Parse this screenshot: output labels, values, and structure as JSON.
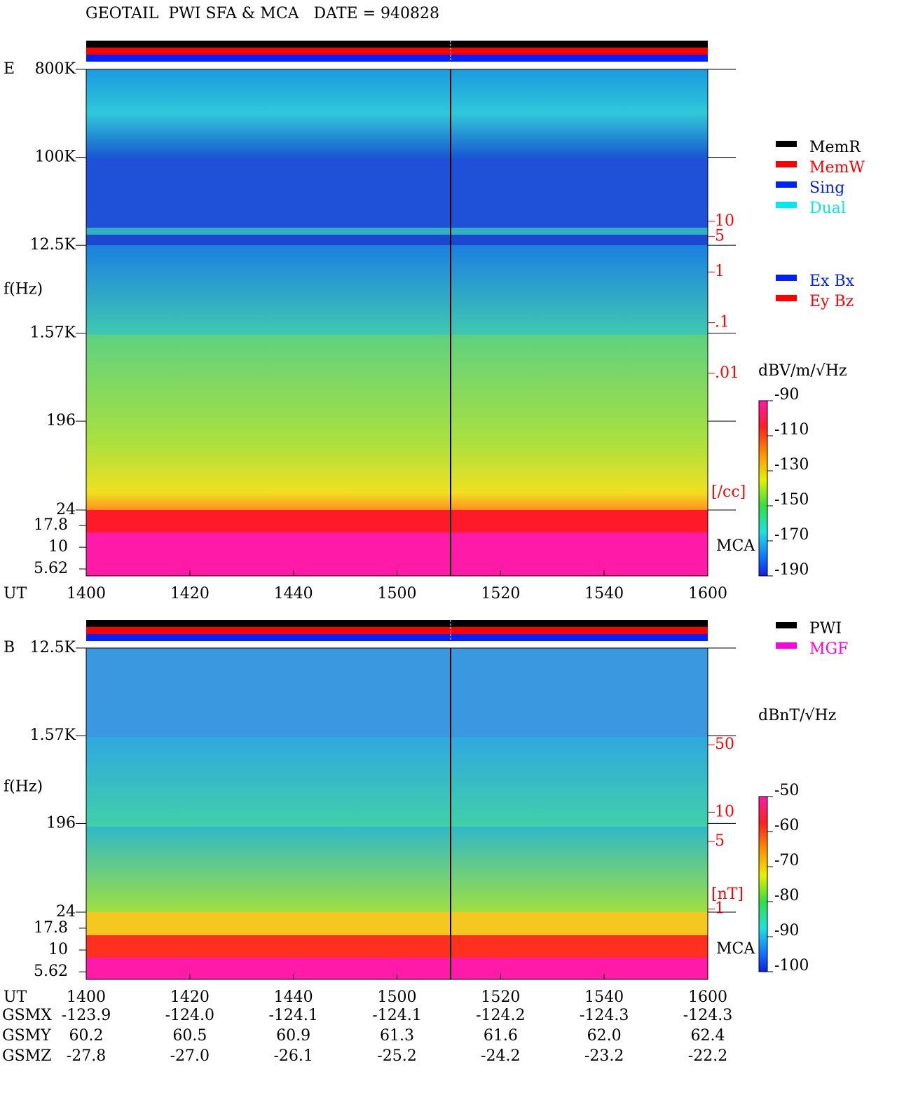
{
  "title": "GEOTAIL  PWI SFA & MCA   DATE = 940828",
  "chart_data": [
    {
      "type": "spectrogram",
      "panel_label": "E",
      "xlabel": "UT",
      "ylabel": "f(Hz)",
      "xlim": [
        840,
        960
      ],
      "xticks": [
        {
          "value": 840,
          "label": "1400"
        },
        {
          "value": 860,
          "label": "1420"
        },
        {
          "value": 880,
          "label": "1440"
        },
        {
          "value": 900,
          "label": "1500"
        },
        {
          "value": 920,
          "label": "1520"
        },
        {
          "value": 940,
          "label": "1540"
        },
        {
          "value": 960,
          "label": "1600"
        }
      ],
      "yscale": "log",
      "ylim": [
        24,
        800000
      ],
      "yticks": [
        {
          "value": 800000,
          "label": "800K"
        },
        {
          "value": 100000,
          "label": "100K"
        },
        {
          "value": 12500,
          "label": "12.5K"
        },
        {
          "value": 1570,
          "label": "1.57K"
        },
        196,
        24
      ],
      "mca_label": "MCA",
      "mca_ylim": [
        4.67,
        26.9
      ],
      "mca_yticks": [
        17.8,
        10,
        5.62
      ],
      "y2scale": "log",
      "y2lim": [
        2e-05,
        10000
      ],
      "y2label": "[/cc]",
      "y2ticks": [
        10,
        5,
        1,
        {
          "value": 0.1,
          "label": ".1"
        },
        {
          "value": 0.01,
          "label": ".01"
        }
      ],
      "colorbar": {
        "label": "dBV/m/√Hz",
        "lim": [
          -190,
          -90
        ],
        "ticks": [
          -90,
          -110,
          -130,
          -150,
          -170,
          -190
        ]
      },
      "legend": [
        {
          "name": "MemR",
          "color": "#000000"
        },
        {
          "name": "MemW",
          "color": "#ff0000"
        },
        {
          "name": "Sing",
          "color": "#0020ff"
        },
        {
          "name": "Dual",
          "color": "#00e8f0"
        }
      ],
      "legend2": [
        {
          "name": "Ex Bx",
          "color": "#0020ff"
        },
        {
          "name": "Ey Bz",
          "color": "#ff0000"
        }
      ]
    },
    {
      "type": "spectrogram",
      "panel_label": "B",
      "xlabel": "UT",
      "ylabel": "f(Hz)",
      "xlim": [
        840,
        960
      ],
      "xticks": [
        {
          "value": 840,
          "label": "1400"
        },
        {
          "value": 860,
          "label": "1420"
        },
        {
          "value": 880,
          "label": "1440"
        },
        {
          "value": 900,
          "label": "1500"
        },
        {
          "value": 920,
          "label": "1520"
        },
        {
          "value": 940,
          "label": "1540"
        },
        {
          "value": 960,
          "label": "1600"
        }
      ],
      "yscale": "log",
      "ylim": [
        24,
        12500
      ],
      "yticks": [
        {
          "value": 12500,
          "label": "12.5K"
        },
        {
          "value": 1570,
          "label": "1.57K"
        },
        196,
        24
      ],
      "mca_label": "MCA",
      "mca_ylim": [
        4.6,
        27.2
      ],
      "mca_yticks": [
        17.8,
        10,
        5.62
      ],
      "y2scale": "log",
      "y2lim": [
        0.93,
        500
      ],
      "y2label": "[nT]",
      "y2ticks": [
        50,
        10,
        5,
        1
      ],
      "colorbar": {
        "label": "dBnT/√Hz",
        "lim": [
          -100,
          -50
        ],
        "ticks": [
          -50,
          -60,
          -70,
          -80,
          -90,
          -100
        ]
      },
      "legend": [
        {
          "name": "PWI",
          "color": "#000000"
        },
        {
          "name": "MGF",
          "color": "#ff00e0"
        }
      ]
    }
  ],
  "orbit": {
    "rows": [
      {
        "name": "GSMX",
        "values": [
          "-123.9",
          "-124.0",
          "-124.1",
          "-124.1",
          "-124.2",
          "-124.3",
          "-124.3"
        ]
      },
      {
        "name": "GSMY",
        "values": [
          "60.2",
          "60.5",
          "60.9",
          "61.3",
          "61.6",
          "62.0",
          "62.4"
        ]
      },
      {
        "name": "GSMZ",
        "values": [
          "-27.8",
          "-27.0",
          "-26.1",
          "-25.2",
          "-24.2",
          "-23.2",
          "-22.2"
        ]
      }
    ]
  }
}
